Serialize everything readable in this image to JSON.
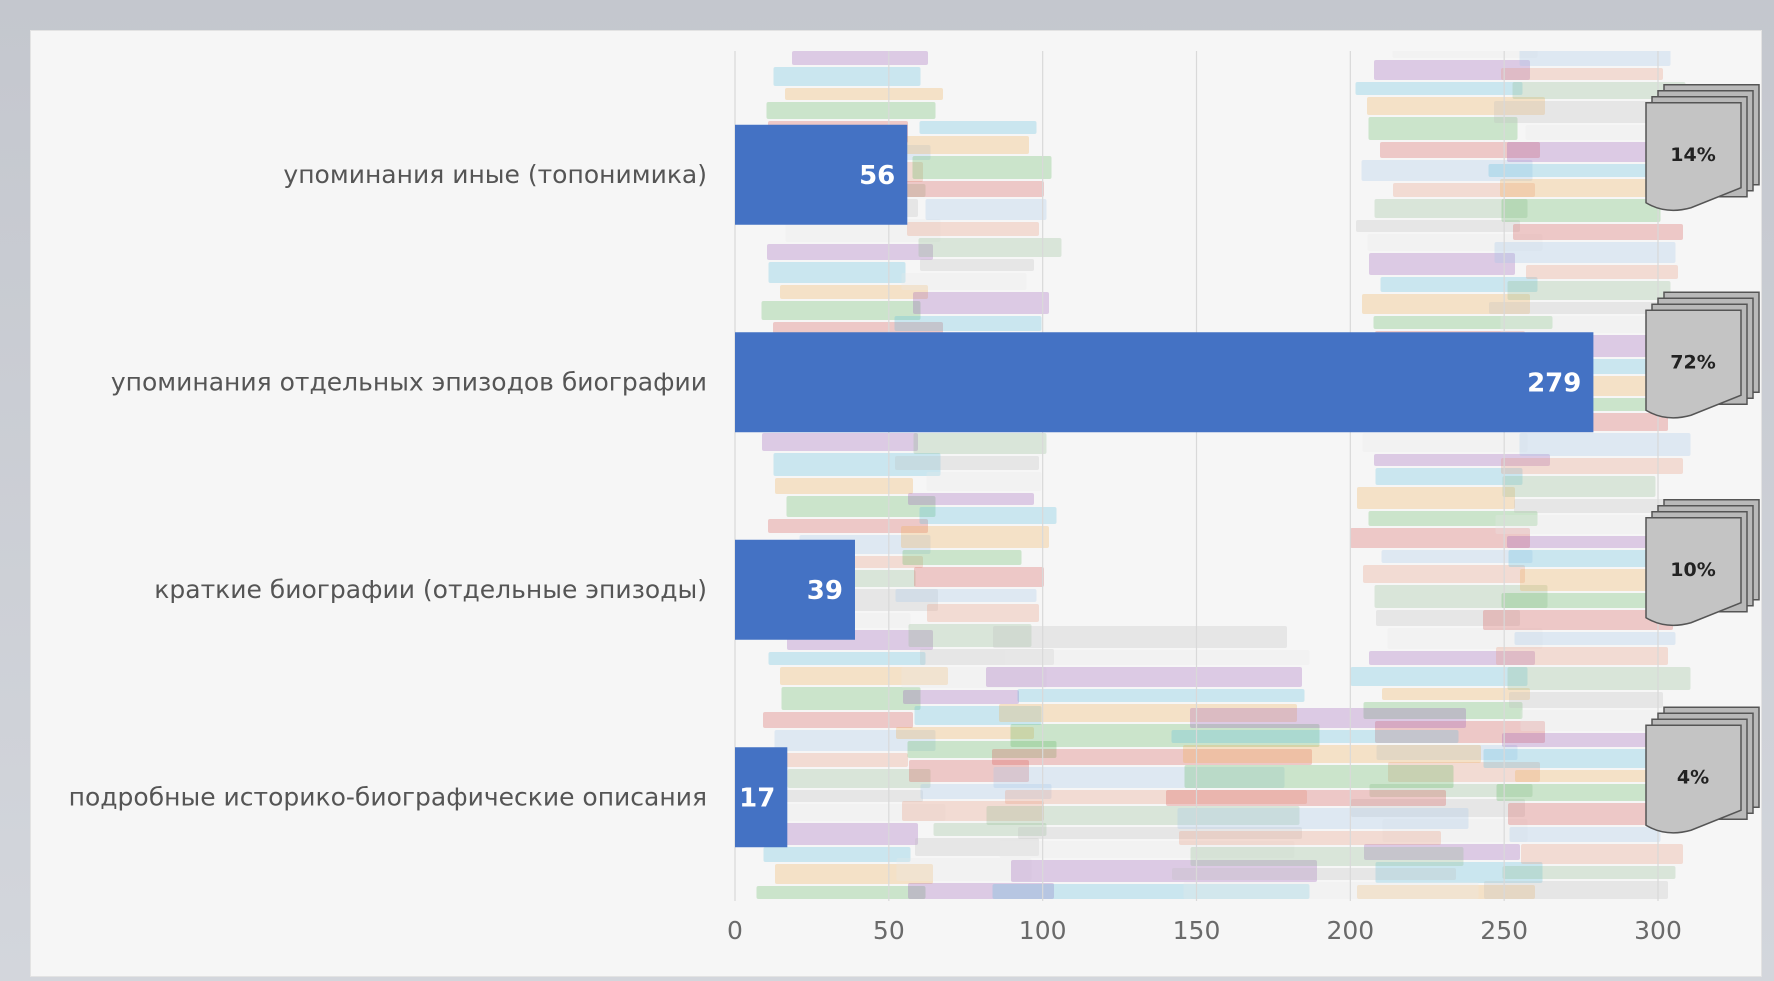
{
  "chart_data": {
    "type": "bar",
    "orientation": "horizontal",
    "categories": [
      "упоминания иные (топонимика)",
      "упоминания отдельных эпизодов биографии",
      "краткие биографии (отдельные эпизоды)",
      "подробные историко-биографические описания"
    ],
    "values": [
      56,
      279,
      39,
      17
    ],
    "percent_labels": [
      "14%",
      "72%",
      "10%",
      "4%"
    ],
    "xlim": [
      0,
      300
    ],
    "xticks": [
      "0",
      "50",
      "100",
      "150",
      "200",
      "250",
      "300"
    ],
    "grid": true,
    "bar_color": "#4472c4",
    "title": "",
    "xlabel": "",
    "ylabel": ""
  }
}
